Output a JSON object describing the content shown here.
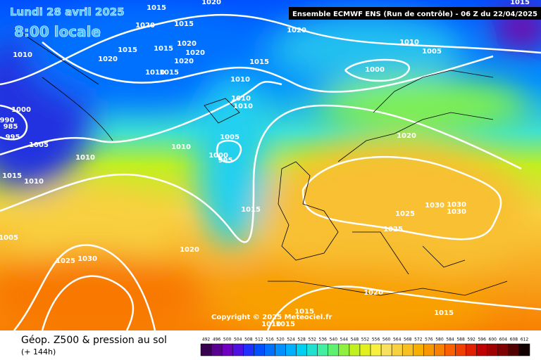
{
  "header": {
    "date": "Lundi 28 avril 2025",
    "time": "8:00 locale",
    "run": "Ensemble ECMWF ENS  (Run de contrôle)  - 06 Z du 22/04/2025"
  },
  "copyright": "Copyright © 2025 Meteociel.fr",
  "footer": {
    "title": "Géop. Z500 & pression au sol",
    "lead": "(+ 144h)"
  },
  "isobar_labels": [
    1015,
    1020,
    1020,
    1015,
    1020,
    1010,
    1015,
    1015,
    1020,
    1020,
    1020,
    1020,
    1015,
    1010,
    1015,
    1010,
    1010,
    1010,
    1010,
    1005,
    1000,
    1015,
    1000,
    990,
    985,
    995,
    1005,
    1010,
    1010,
    1005,
    1000,
    995,
    1015,
    1010,
    1015,
    1020,
    1030,
    1030,
    1030,
    1025,
    1025,
    1005,
    1020,
    1025,
    1030,
    1020,
    1015,
    1015,
    1010,
    1015
  ],
  "colorbar": {
    "values": [
      492,
      496,
      500,
      504,
      508,
      512,
      516,
      520,
      524,
      528,
      532,
      536,
      540,
      544,
      548,
      552,
      556,
      560,
      564,
      568,
      572,
      576,
      580,
      584,
      588,
      592,
      596,
      600,
      604,
      608,
      612
    ],
    "colors": [
      "#3a0050",
      "#5a0090",
      "#7000c0",
      "#5010e0",
      "#2030ff",
      "#0050ff",
      "#0070ff",
      "#0090ff",
      "#00b0ff",
      "#00d0f0",
      "#20e0d0",
      "#40f0a0",
      "#60f070",
      "#90f040",
      "#c0f020",
      "#e0f020",
      "#f8f040",
      "#f8e060",
      "#f8d040",
      "#f8c020",
      "#f8b000",
      "#f89800",
      "#f88000",
      "#f86000",
      "#f04000",
      "#e02000",
      "#c00000",
      "#a00000",
      "#800000",
      "#500000",
      "#100000"
    ]
  }
}
